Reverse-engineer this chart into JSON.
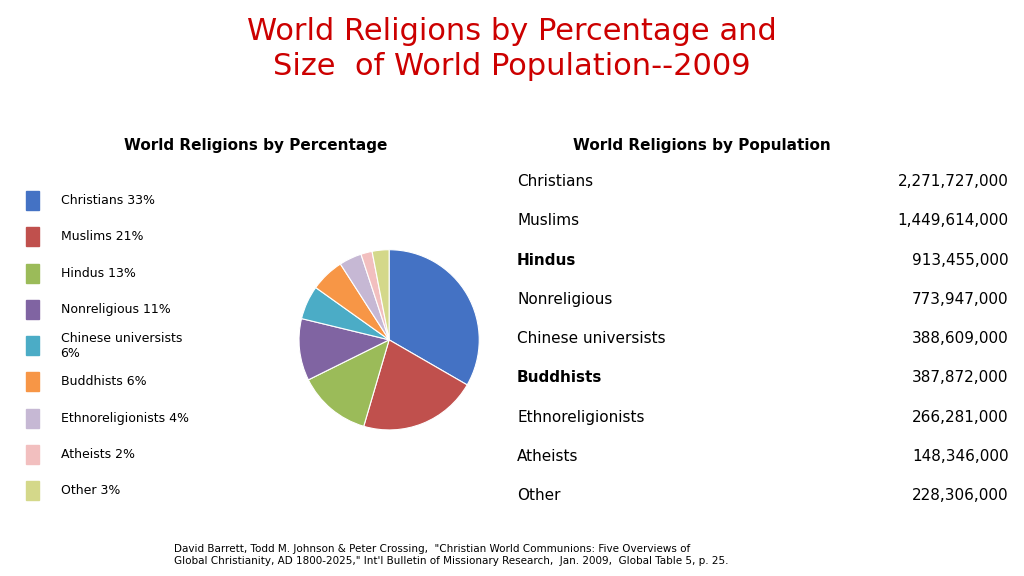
{
  "title": "World Religions by Percentage and\nSize  of World Population--2009",
  "title_color": "#cc0000",
  "title_fontsize": 22,
  "pie_title": "World Religions by Percentage",
  "table_title": "World Religions by Population",
  "religions": [
    "Christians",
    "Muslims",
    "Hindus",
    "Nonreligious",
    "Chinese universists",
    "Buddhists",
    "Ethnoreligionists",
    "Atheists",
    "Other"
  ],
  "percentages": [
    33,
    21,
    13,
    11,
    6,
    6,
    4,
    2,
    3
  ],
  "labels_pct": [
    "Christians 33%",
    "Muslims 21%",
    "Hindus 13%",
    "Nonreligious 11%",
    "Chinese universists\n6%",
    "Buddhists 6%",
    "Ethnoreligionists 4%",
    "Atheists 2%",
    "Other 3%"
  ],
  "populations": [
    "2,271,727,000",
    "1,449,614,000",
    "913,455,000",
    "773,947,000",
    "388,609,000",
    "387,872,000",
    "266,281,000",
    "148,346,000",
    "228,306,000"
  ],
  "bold_rows": [
    2,
    5
  ],
  "colors": [
    "#4472c4",
    "#c0504d",
    "#9bbb59",
    "#8064a2",
    "#4bacc6",
    "#f79646",
    "#c6b8d4",
    "#f2bfbf",
    "#d4d88a"
  ],
  "pie_startangle": 90,
  "footnote": "David Barrett, Todd M. Johnson & Peter Crossing,  \"Christian World Communions: Five Overviews of\nGlobal Christianity, AD 1800-2025,\" Int'l Bulletin of Missionary Research,  Jan. 2009,  Global Table 5, p. 25.",
  "background_color": "#ffffff",
  "legend_fontsize": 9,
  "table_fontsize": 11,
  "subtitle_fontsize": 11
}
